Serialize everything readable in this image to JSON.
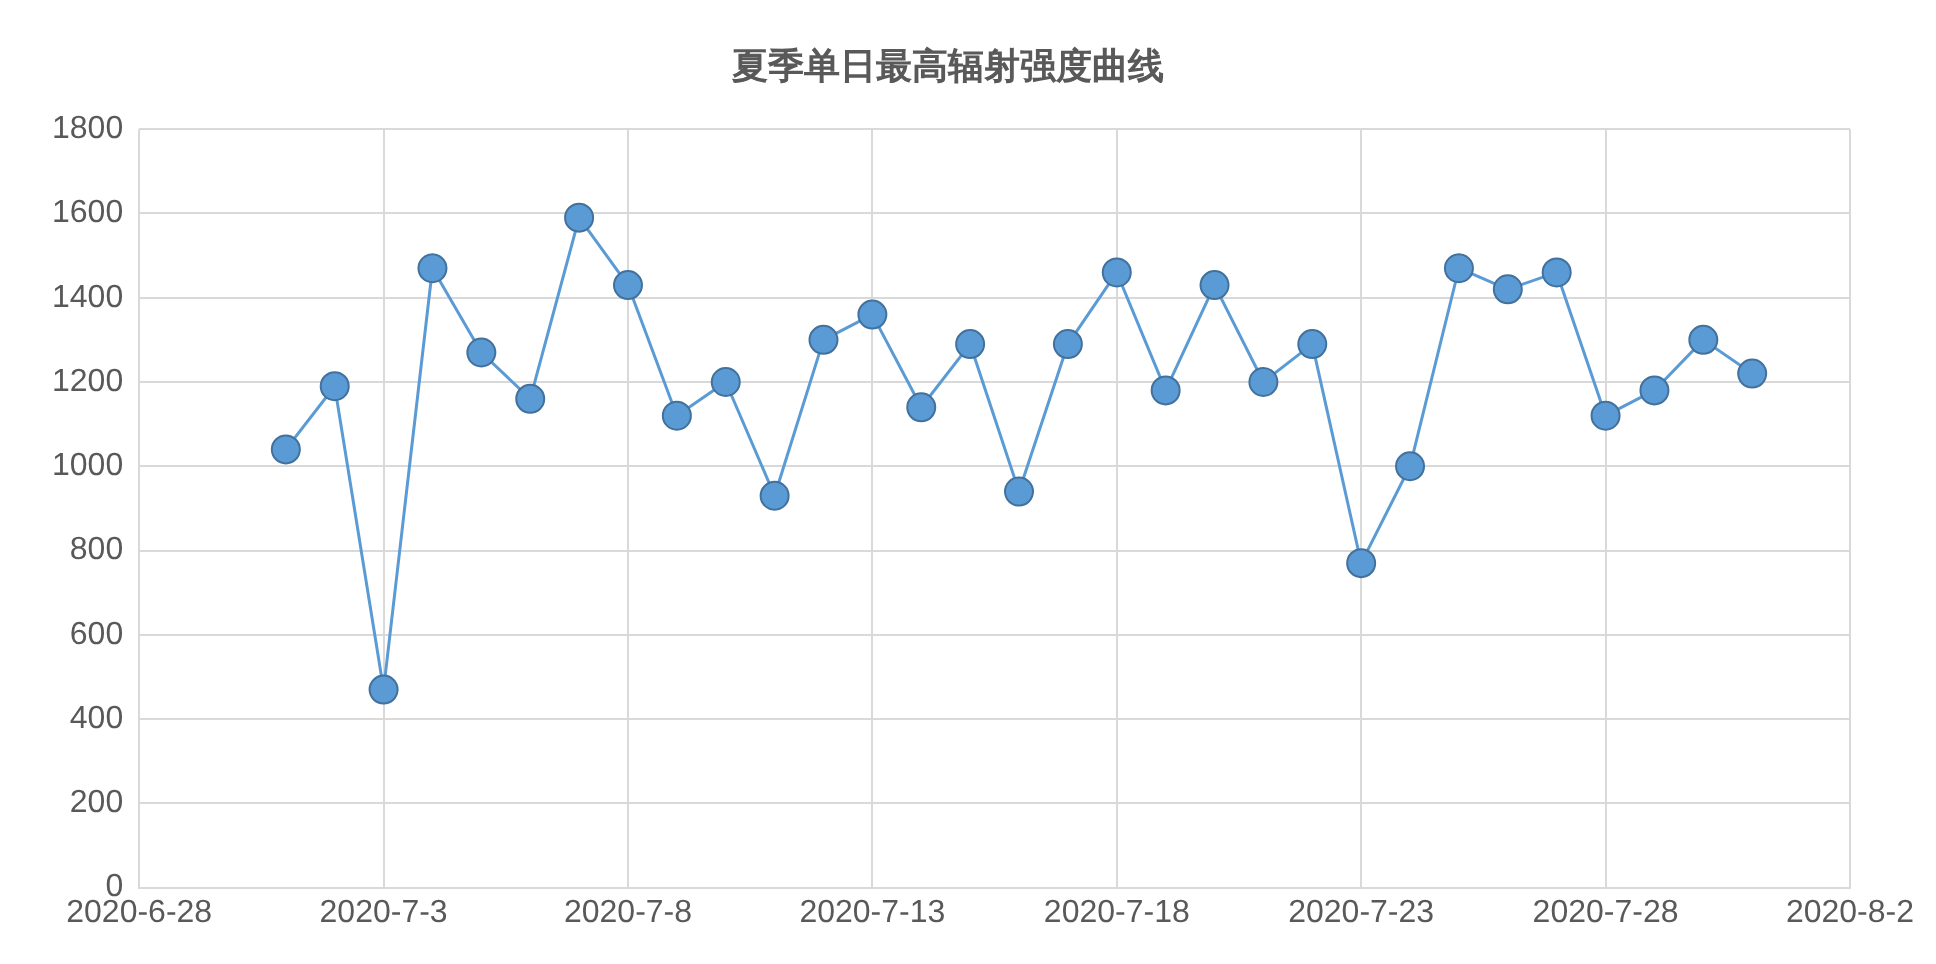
{
  "chart_data": {
    "type": "line",
    "title": "夏季单日最高辐射强度曲线",
    "x": [
      "2020-07-01",
      "2020-07-02",
      "2020-07-03",
      "2020-07-04",
      "2020-07-05",
      "2020-07-06",
      "2020-07-07",
      "2020-07-08",
      "2020-07-09",
      "2020-07-10",
      "2020-07-11",
      "2020-07-12",
      "2020-07-13",
      "2020-07-14",
      "2020-07-15",
      "2020-07-16",
      "2020-07-17",
      "2020-07-18",
      "2020-07-19",
      "2020-07-20",
      "2020-07-21",
      "2020-07-22",
      "2020-07-23",
      "2020-07-24",
      "2020-07-25",
      "2020-07-26",
      "2020-07-27",
      "2020-07-28",
      "2020-07-29",
      "2020-07-30",
      "2020-07-31"
    ],
    "series": [
      {
        "color": "#5b9bd5",
        "values": [
          1040,
          1190,
          470,
          1470,
          1270,
          1160,
          1590,
          1430,
          1120,
          1200,
          930,
          1300,
          1360,
          1140,
          1290,
          940,
          1290,
          1460,
          1180,
          1430,
          1200,
          1290,
          770,
          1000,
          1470,
          1420,
          1460,
          1120,
          1180,
          1300,
          1220
        ]
      }
    ],
    "xlim": [
      "2020-06-28",
      "2020-08-02"
    ],
    "xticks": [
      {
        "value": "2020-06-28",
        "label": "2020-6-28"
      },
      {
        "value": "2020-07-03",
        "label": "2020-7-3"
      },
      {
        "value": "2020-07-08",
        "label": "2020-7-8"
      },
      {
        "value": "2020-07-13",
        "label": "2020-7-13"
      },
      {
        "value": "2020-07-18",
        "label": "2020-7-18"
      },
      {
        "value": "2020-07-23",
        "label": "2020-7-23"
      },
      {
        "value": "2020-07-28",
        "label": "2020-7-28"
      },
      {
        "value": "2020-08-02",
        "label": "2020-8-2"
      }
    ],
    "ylim": [
      0,
      1800
    ],
    "yticks": [
      0,
      200,
      400,
      600,
      800,
      1000,
      1200,
      1400,
      1600,
      1800
    ],
    "grid": true,
    "legend": false,
    "marker": "circle",
    "line_style": "solid"
  }
}
